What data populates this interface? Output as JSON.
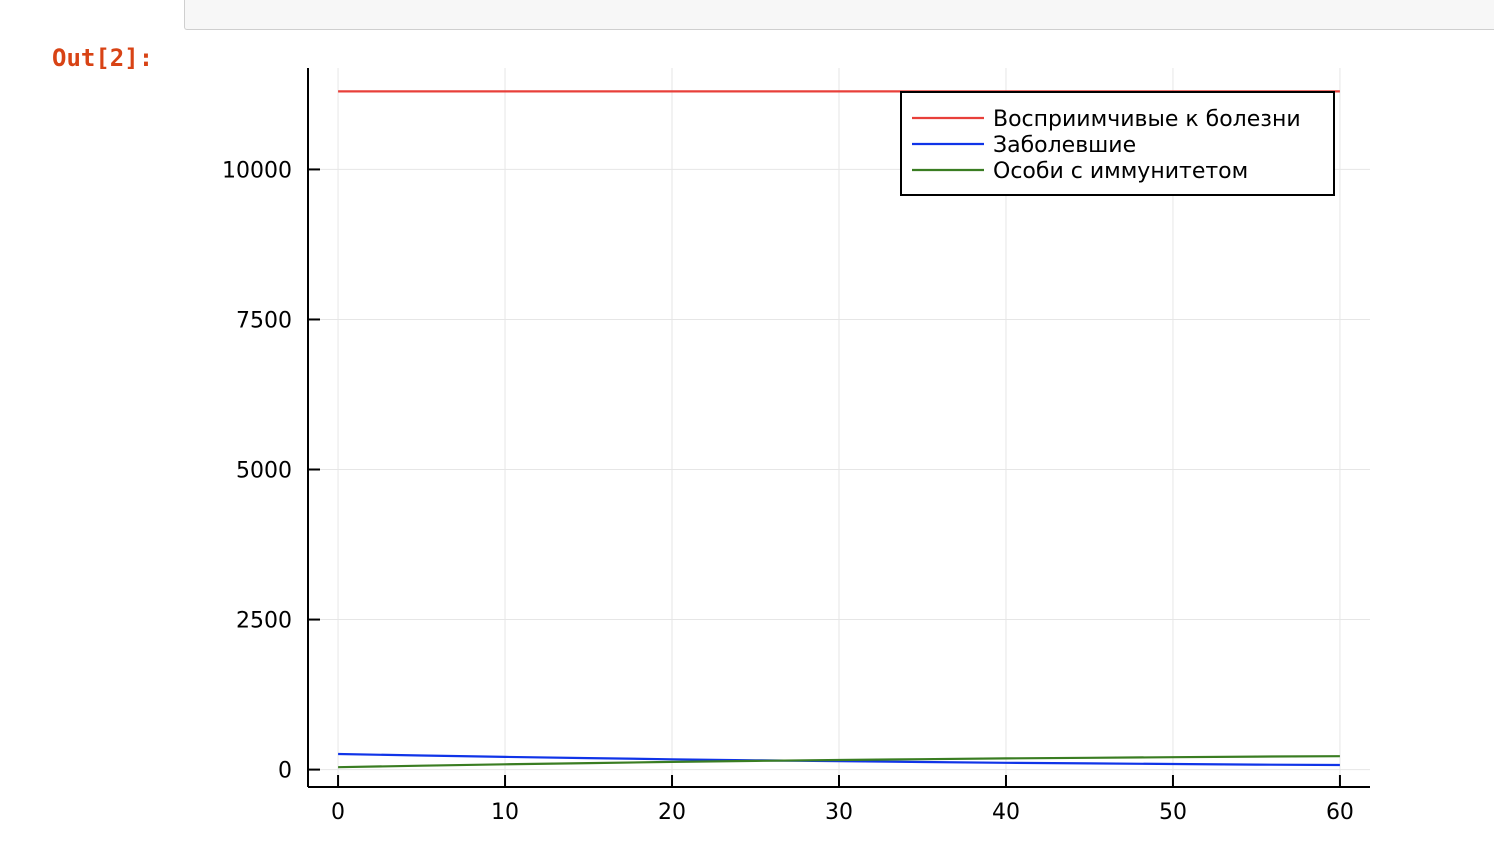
{
  "notebook": {
    "output_prompt": "Out[2]:"
  },
  "chart_data": {
    "type": "line",
    "title": "",
    "xlabel": "",
    "ylabel": "",
    "xlim": [
      -1.8,
      61.8
    ],
    "ylim": [
      -290,
      11690
    ],
    "x_ticks": [
      0,
      10,
      20,
      30,
      40,
      50,
      60
    ],
    "y_ticks": [
      0,
      2500,
      5000,
      7500,
      10000
    ],
    "grid": true,
    "legend_position": "top-right",
    "x": [
      0,
      5,
      10,
      15,
      20,
      25,
      30,
      35,
      40,
      45,
      50,
      55,
      60
    ],
    "series": [
      {
        "name": "Восприимчивые к болезни",
        "color": "#e8403a",
        "values": [
          11300,
          11300,
          11300,
          11300,
          11300,
          11300,
          11300,
          11300,
          11300,
          11300,
          11300,
          11300,
          11300
        ]
      },
      {
        "name": "Заболевшие",
        "color": "#1034e8",
        "values": [
          260,
          235,
          212,
          191,
          172,
          155,
          140,
          126,
          114,
          103,
          93,
          84,
          76
        ]
      },
      {
        "name": "Особи с иммунитетом",
        "color": "#3a7d22",
        "values": [
          40,
          65,
          88,
          109,
          128,
          145,
          160,
          174,
          186,
          197,
          207,
          216,
          224
        ]
      }
    ]
  }
}
